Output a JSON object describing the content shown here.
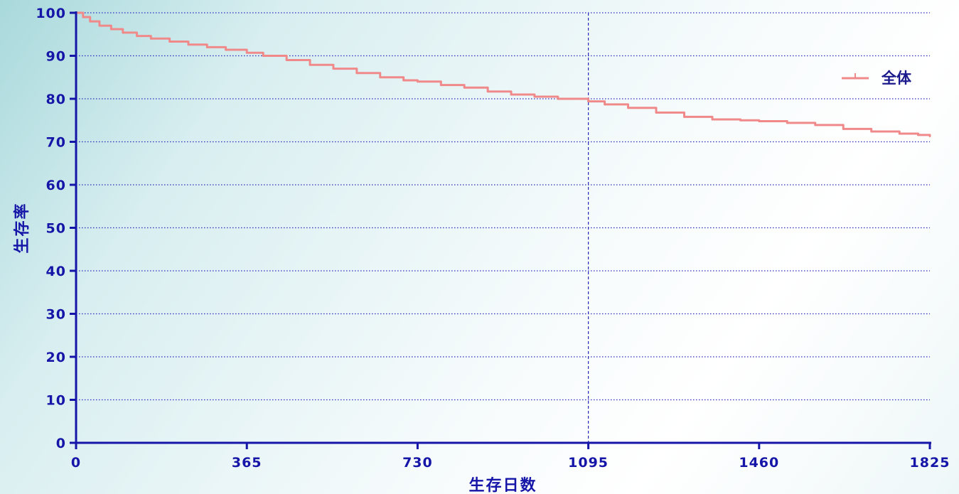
{
  "chart_data": {
    "type": "line",
    "title": "",
    "xlabel": "生存日数",
    "ylabel": "生存率",
    "xlim": [
      0,
      1825
    ],
    "ylim": [
      0,
      100
    ],
    "x_ticks": [
      0,
      365,
      730,
      1095,
      1460,
      1825
    ],
    "y_ticks": [
      0,
      10,
      20,
      30,
      40,
      50,
      60,
      70,
      80,
      90,
      100
    ],
    "grid": "horizontal-dotted",
    "reference_line_x": 1095,
    "legend": {
      "position": "top-right"
    },
    "series": [
      {
        "name": "全体",
        "color": "#f08a8a",
        "x": [
          0,
          15,
          30,
          50,
          75,
          100,
          130,
          160,
          200,
          240,
          280,
          320,
          365,
          400,
          450,
          500,
          550,
          600,
          650,
          700,
          730,
          780,
          830,
          880,
          930,
          980,
          1030,
          1095,
          1130,
          1180,
          1240,
          1300,
          1360,
          1420,
          1460,
          1520,
          1580,
          1640,
          1700,
          1760,
          1800,
          1825
        ],
        "y": [
          100,
          99.0,
          98.0,
          97.0,
          96.2,
          95.4,
          94.6,
          94.0,
          93.3,
          92.6,
          92.0,
          91.4,
          90.7,
          90.0,
          89.0,
          87.9,
          87.0,
          86.0,
          85.0,
          84.3,
          84.0,
          83.2,
          82.6,
          81.7,
          81.0,
          80.5,
          80.0,
          79.4,
          78.7,
          77.9,
          76.8,
          75.8,
          75.2,
          75.0,
          74.8,
          74.4,
          73.9,
          73.0,
          72.4,
          71.9,
          71.6,
          71.3
        ]
      }
    ]
  }
}
